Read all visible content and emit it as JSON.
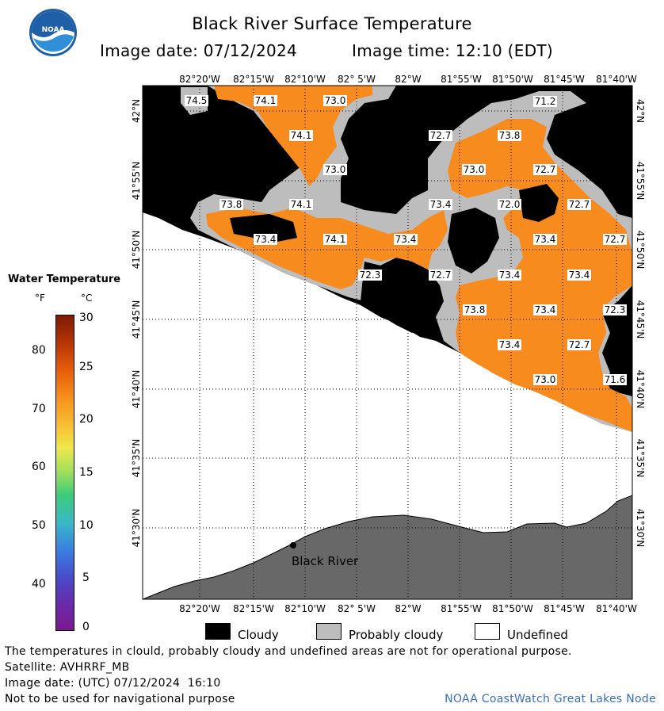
{
  "title": "Black River Surface Temperature",
  "image_date_label": "Image date: 07/12/2024",
  "image_time_label": "Image time: 12:10 (EDT)",
  "logo_text": "NOAA",
  "legend": {
    "title": "Water Temperature",
    "unit_f": "°F",
    "unit_c": "°C",
    "f_ticks": [
      "80",
      "70",
      "60",
      "50",
      "40"
    ],
    "c_ticks": [
      "30",
      "25",
      "20",
      "15",
      "10",
      "5",
      "0"
    ]
  },
  "map": {
    "lon_labels": [
      "82°20'W",
      "82°15'W",
      "82°10'W",
      "82° 5'W",
      "82°W",
      "81°55'W",
      "81°50'W",
      "81°45'W",
      "81°40'W"
    ],
    "lat_labels": [
      "42°N",
      "41°55'N",
      "41°50'N",
      "41°45'N",
      "41°40'N",
      "41°35'N",
      "41°30'N"
    ],
    "place_label": "Black River",
    "temps": [
      "74.5",
      "74.1",
      "73.0",
      "71.2",
      "74.1",
      "72.7",
      "73.8",
      "73.0",
      "73.0",
      "72.7",
      "73.8",
      "74.1",
      "73.4",
      "72.0",
      "72.7",
      "73.4",
      "74.1",
      "73.4",
      "73.4",
      "72.7",
      "72.3",
      "72.7",
      "73.4",
      "73.4",
      "73.8",
      "73.4",
      "72.3",
      "73.4",
      "72.7",
      "73.0",
      "71.6"
    ]
  },
  "key": {
    "cloudy": "Cloudy",
    "probably_cloudy": "Probably cloudy",
    "undefined": "Undefined"
  },
  "colors": {
    "cloudy": "#000000",
    "probably_cloudy": "#bdbdbd",
    "undefined": "#ffffff",
    "land": "#686868",
    "water_warm": "#f88b1e"
  },
  "footer": {
    "disclaimer": "The temperatures in clould, probably cloudy and undefined areas are not for operational purpose.",
    "satellite": "Satellite: AVHRRF_MB",
    "utc_date": "Image date: (UTC) 07/12/2024  16:10",
    "navigation": "Not to be used for navigational purpose",
    "credit": "NOAA CoastWatch Great Lakes Node"
  }
}
